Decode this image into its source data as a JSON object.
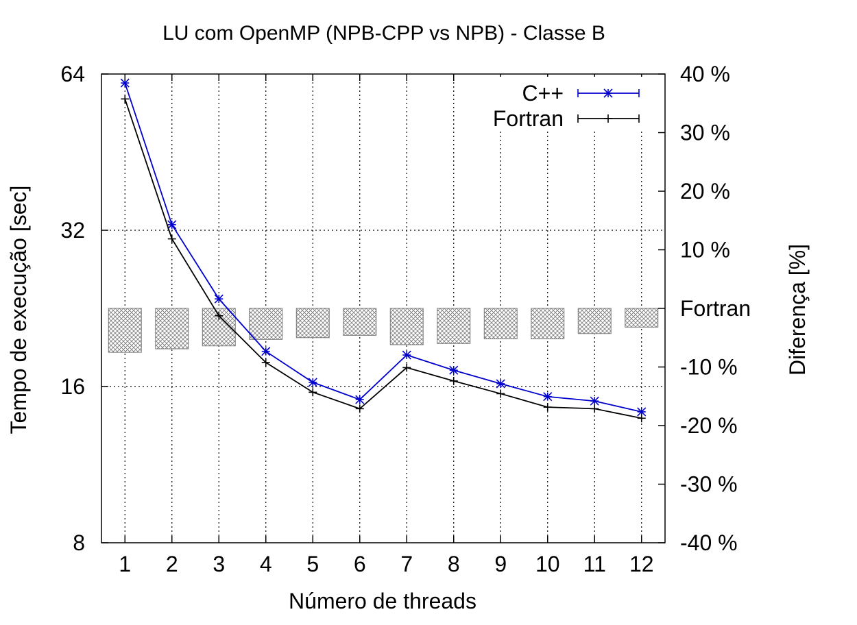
{
  "chart_data": {
    "type": "line",
    "title": "LU com OpenMP (NPB-CPP vs NPB) - Classe B",
    "xlabel": "Número de threads",
    "ylabel": "Tempo de execução [sec]",
    "y2label": "Diferença [%]",
    "y2_zero_label": "Fortran",
    "x": [
      1,
      2,
      3,
      4,
      5,
      6,
      7,
      8,
      9,
      10,
      11,
      12
    ],
    "x_ticks": [
      "1",
      "2",
      "3",
      "4",
      "5",
      "6",
      "7",
      "8",
      "9",
      "10",
      "11",
      "12"
    ],
    "y_scale": "log2",
    "ylim": [
      8,
      64
    ],
    "y_ticks": [
      8,
      16,
      32,
      64
    ],
    "y_tick_labels": [
      "8",
      "16",
      "32",
      "64"
    ],
    "y2lim": [
      -40,
      40
    ],
    "y2_ticks": [
      40,
      30,
      20,
      10,
      0,
      -10,
      -20,
      -30,
      -40
    ],
    "y2_tick_labels": [
      "40 %",
      "30 %",
      "20 %",
      "10 %",
      "Fortran",
      "-10 %",
      "-20 %",
      "-30 %",
      "-40 %"
    ],
    "grid": true,
    "legend_position": "top-right",
    "series": [
      {
        "name": "C++",
        "color": "#0000cc",
        "marker": "star",
        "values": [
          61.5,
          32.8,
          23.6,
          18.7,
          16.3,
          15.1,
          18.4,
          17.2,
          16.2,
          15.3,
          15.0,
          14.3
        ]
      },
      {
        "name": "Fortran",
        "color": "#000000",
        "marker": "plus",
        "values": [
          57.3,
          30.8,
          21.9,
          17.8,
          15.6,
          14.5,
          17.4,
          16.4,
          15.5,
          14.6,
          14.5,
          13.9
        ]
      }
    ],
    "difference_boxes": {
      "axis": "y2",
      "values": [
        -7.5,
        -6.9,
        -6.4,
        -5.3,
        -5.0,
        -4.6,
        -6.2,
        -6.0,
        -5.2,
        -5.2,
        -4.3,
        -3.2
      ]
    }
  }
}
